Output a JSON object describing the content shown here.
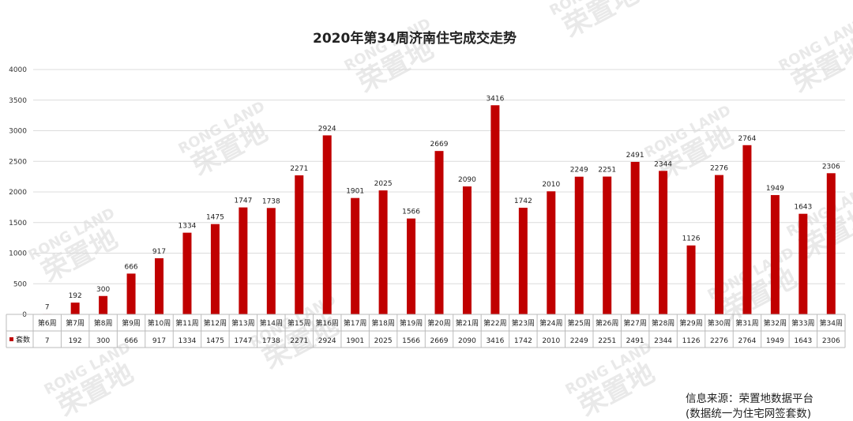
{
  "chart_data": {
    "type": "bar",
    "title": "2020年第34周济南住宅成交走势",
    "categories": [
      "第6周",
      "第7周",
      "第8周",
      "第9周",
      "第10周",
      "第11周",
      "第12周",
      "第13周",
      "第14周",
      "第15周",
      "第16周",
      "第17周",
      "第18周",
      "第19周",
      "第20周",
      "第21周",
      "第22周",
      "第23周",
      "第24周",
      "第25周",
      "第26周",
      "第27周",
      "第28周",
      "第29周",
      "第30周",
      "第31周",
      "第32周",
      "第33周",
      "第34周"
    ],
    "series": [
      {
        "name": "套数",
        "values": [
          7,
          192,
          300,
          666,
          917,
          1334,
          1475,
          1747,
          1738,
          2271,
          2924,
          1901,
          2025,
          1566,
          2669,
          2090,
          3416,
          1742,
          2010,
          2249,
          2251,
          2491,
          2344,
          1126,
          2276,
          2764,
          1949,
          1643,
          2306
        ]
      }
    ],
    "ylim": [
      0,
      4000
    ],
    "yticks": [
      0,
      500,
      1000,
      1500,
      2000,
      2500,
      3000,
      3500,
      4000
    ],
    "grid": true,
    "data_table": true,
    "bar_color": "#c00000"
  },
  "watermark": {
    "latin": "RONG LAND",
    "cjk": "荣置地"
  },
  "footnote": {
    "source": "信息来源：荣置地数据平台",
    "note": "(数据统一为住宅网签套数)"
  }
}
